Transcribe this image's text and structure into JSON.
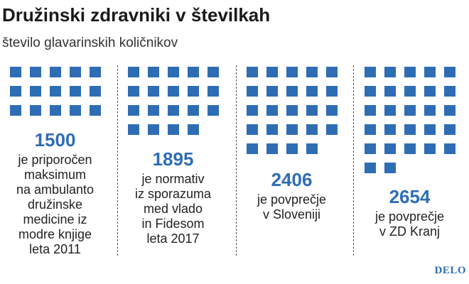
{
  "title": "Družinski zdravniki v številkah",
  "subtitle": "število glavarinskih količnikov",
  "accent_color": "#2e6db4",
  "brand": "DELO",
  "chart_data": {
    "type": "pictogram",
    "title": "Družinski zdravniki v številkah",
    "subtitle": "število glavarinskih količnikov",
    "unit_per_icon": 100,
    "items": [
      {
        "value": 1500,
        "value_label": "1500",
        "description": [
          "je priporočen",
          "maksimum",
          "na ambulanto",
          "družinske",
          "medicine iz",
          "modre knjige",
          "leta 2011"
        ]
      },
      {
        "value": 1895,
        "value_label": "1895",
        "description": [
          "je normativ",
          "iz sporazuma",
          "med vlado",
          "in Fidesom",
          "leta 2017"
        ]
      },
      {
        "value": 2406,
        "value_label": "2406",
        "description": [
          "je povprečje",
          "v Sloveniji"
        ]
      },
      {
        "value": 2654,
        "value_label": "2654",
        "description": [
          "je povprečje",
          "v ZD Kranj"
        ]
      }
    ]
  }
}
